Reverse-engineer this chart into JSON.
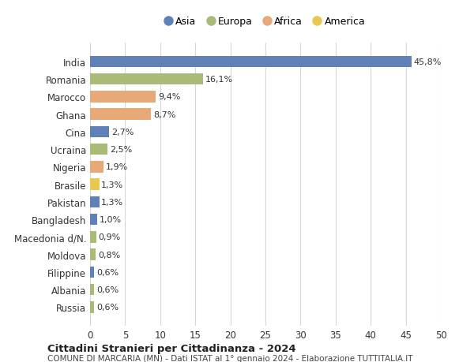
{
  "countries": [
    "India",
    "Romania",
    "Marocco",
    "Ghana",
    "Cina",
    "Ucraina",
    "Nigeria",
    "Brasile",
    "Pakistan",
    "Bangladesh",
    "Macedonia d/N.",
    "Moldova",
    "Filippine",
    "Albania",
    "Russia"
  ],
  "values": [
    45.8,
    16.1,
    9.4,
    8.7,
    2.7,
    2.5,
    1.9,
    1.3,
    1.3,
    1.0,
    0.9,
    0.8,
    0.6,
    0.6,
    0.6
  ],
  "labels": [
    "45,8%",
    "16,1%",
    "9,4%",
    "8,7%",
    "2,7%",
    "2,5%",
    "1,9%",
    "1,3%",
    "1,3%",
    "1,0%",
    "0,9%",
    "0,8%",
    "0,6%",
    "0,6%",
    "0,6%"
  ],
  "continents": [
    "Asia",
    "Europa",
    "Africa",
    "Africa",
    "Asia",
    "Europa",
    "Africa",
    "America",
    "Asia",
    "Asia",
    "Europa",
    "Europa",
    "Asia",
    "Europa",
    "Europa"
  ],
  "colors": {
    "Asia": "#6080b8",
    "Europa": "#a8bc78",
    "Africa": "#e8a878",
    "America": "#e8c850"
  },
  "legend_order": [
    "Asia",
    "Europa",
    "Africa",
    "America"
  ],
  "title1": "Cittadini Stranieri per Cittadinanza - 2024",
  "title2": "COMUNE DI MARCARIA (MN) - Dati ISTAT al 1° gennaio 2024 - Elaborazione TUTTITALIA.IT",
  "xlim": [
    0,
    50
  ],
  "xticks": [
    0,
    5,
    10,
    15,
    20,
    25,
    30,
    35,
    40,
    45,
    50
  ],
  "bg_color": "#ffffff",
  "grid_color": "#d8d8d8"
}
